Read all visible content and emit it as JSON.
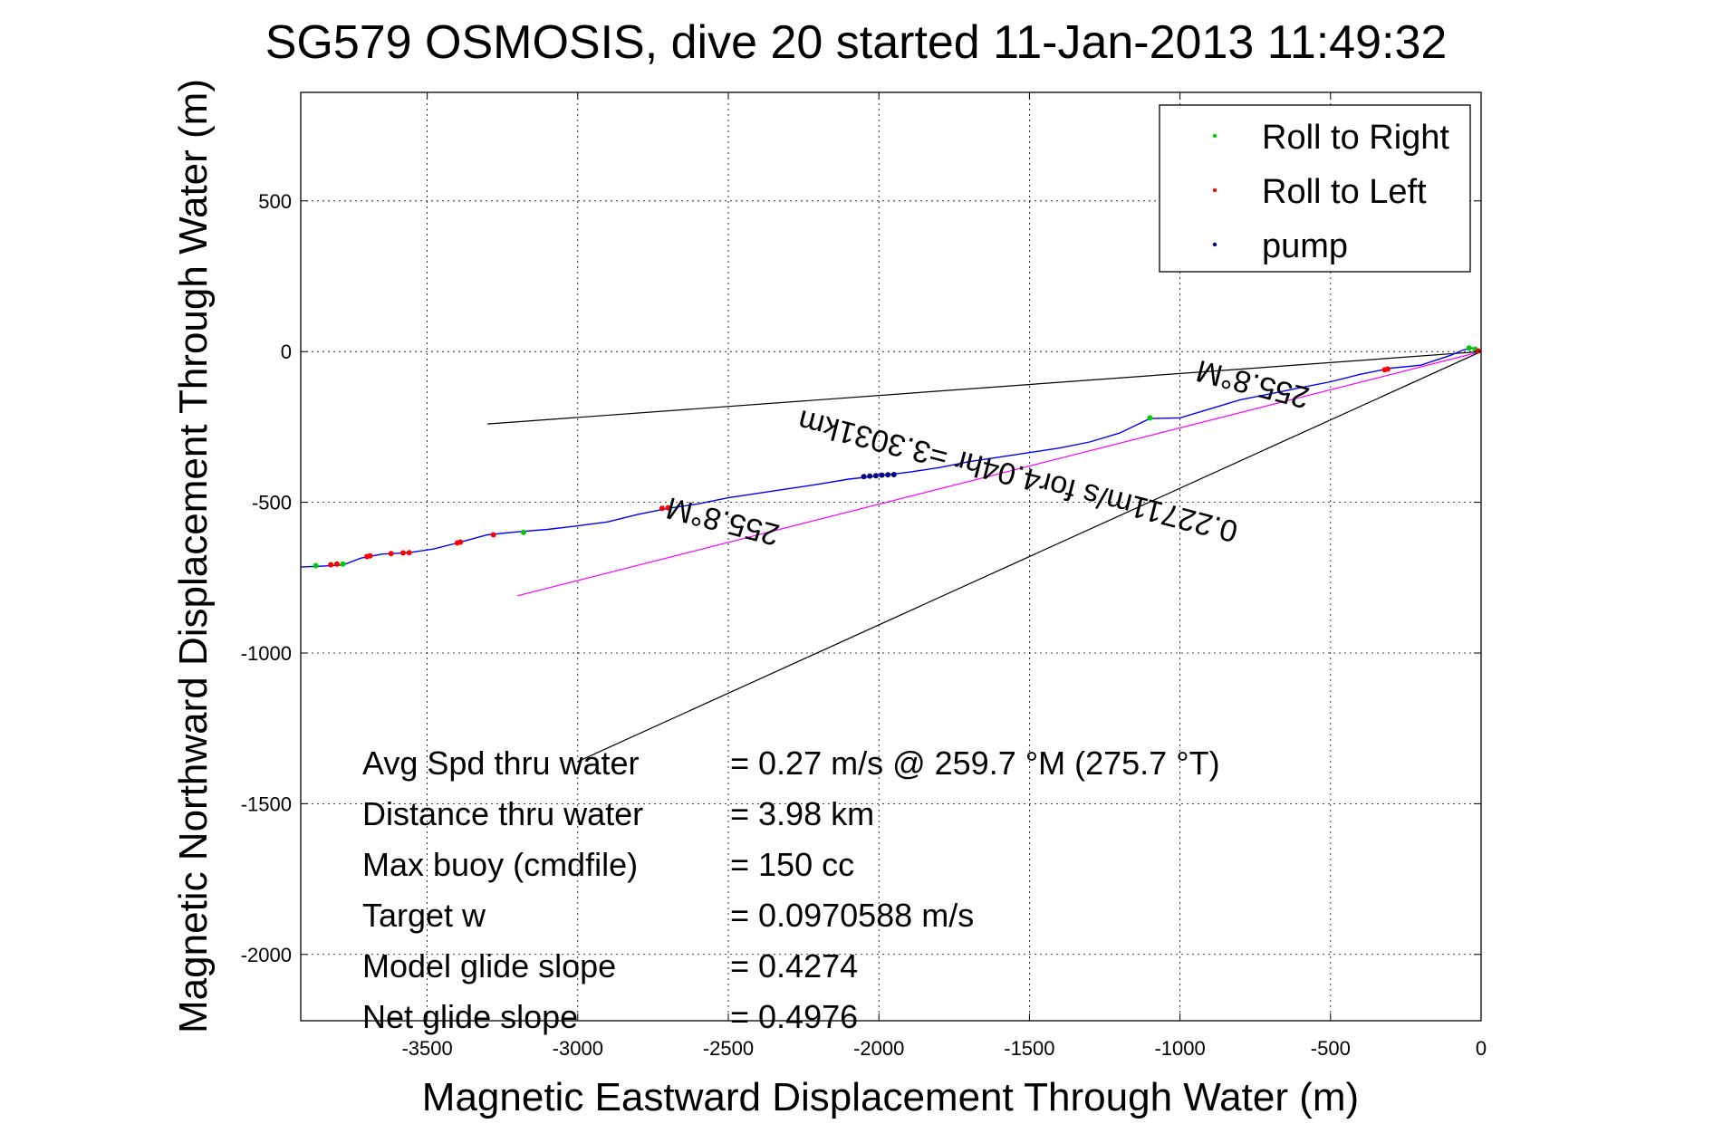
{
  "chart_data": {
    "type": "line",
    "title": "SG579 OSMOSIS, dive 20 started 11-Jan-2013 11:49:32",
    "xlabel": "Magnetic Eastward Displacement Through Water (m)",
    "ylabel": "Magnetic Northward Displacement Through Water (m)",
    "xlim": [
      -3920,
      0
    ],
    "ylim": [
      -2220,
      860
    ],
    "xticks": [
      -3500,
      -3000,
      -2500,
      -2000,
      -1500,
      -1000,
      -500,
      0
    ],
    "yticks": [
      500,
      0,
      -500,
      -1000,
      -1500,
      -2000
    ],
    "grid": true,
    "legend_position": "top-right",
    "series": [
      {
        "name": "Roll to Right",
        "color": "#00cc00",
        "points": [
          [
            -3870,
            -710
          ],
          [
            -3780,
            -705
          ],
          [
            -3180,
            -600
          ],
          [
            -1100,
            -220
          ],
          [
            -40,
            12
          ],
          [
            -20,
            8
          ]
        ]
      },
      {
        "name": "Roll to Left",
        "color": "#ff0000",
        "points": [
          [
            -3820,
            -707
          ],
          [
            -3800,
            -705
          ],
          [
            -3700,
            -680
          ],
          [
            -3690,
            -678
          ],
          [
            -3620,
            -670
          ],
          [
            -3580,
            -668
          ],
          [
            -3560,
            -667
          ],
          [
            -3400,
            -635
          ],
          [
            -3390,
            -632
          ],
          [
            -3280,
            -608
          ],
          [
            -2720,
            -520
          ],
          [
            -2700,
            -518
          ],
          [
            -320,
            -60
          ],
          [
            -310,
            -58
          ],
          [
            -10,
            2
          ]
        ]
      },
      {
        "name": "pump",
        "color": "#000080",
        "points": [
          [
            -2050,
            -415
          ],
          [
            -2030,
            -413
          ],
          [
            -2010,
            -412
          ],
          [
            -1990,
            -410
          ],
          [
            -1970,
            -409
          ],
          [
            -1950,
            -408
          ]
        ]
      }
    ],
    "dive_track": {
      "color": "#0000ff",
      "points": [
        [
          -3920,
          -715
        ],
        [
          -3850,
          -712
        ],
        [
          -3780,
          -708
        ],
        [
          -3720,
          -685
        ],
        [
          -3650,
          -672
        ],
        [
          -3560,
          -667
        ],
        [
          -3480,
          -655
        ],
        [
          -3400,
          -635
        ],
        [
          -3300,
          -608
        ],
        [
          -3200,
          -598
        ],
        [
          -3100,
          -590
        ],
        [
          -3000,
          -578
        ],
        [
          -2900,
          -565
        ],
        [
          -2800,
          -540
        ],
        [
          -2700,
          -520
        ],
        [
          -2600,
          -505
        ],
        [
          -2500,
          -485
        ],
        [
          -2400,
          -470
        ],
        [
          -2300,
          -455
        ],
        [
          -2200,
          -440
        ],
        [
          -2100,
          -423
        ],
        [
          -2000,
          -412
        ],
        [
          -1900,
          -400
        ],
        [
          -1800,
          -385
        ],
        [
          -1700,
          -365
        ],
        [
          -1600,
          -350
        ],
        [
          -1500,
          -335
        ],
        [
          -1400,
          -320
        ],
        [
          -1300,
          -300
        ],
        [
          -1200,
          -270
        ],
        [
          -1100,
          -222
        ],
        [
          -1000,
          -220
        ],
        [
          -900,
          -190
        ],
        [
          -800,
          -160
        ],
        [
          -700,
          -140
        ],
        [
          -600,
          -120
        ],
        [
          -500,
          -100
        ],
        [
          -400,
          -75
        ],
        [
          -300,
          -55
        ],
        [
          -200,
          -45
        ],
        [
          -100,
          -12
        ],
        [
          -60,
          5
        ],
        [
          -30,
          12
        ],
        [
          0,
          2
        ]
      ]
    },
    "reference_lines": [
      {
        "color": "#ff00ff",
        "points": [
          [
            -3200,
            -810
          ],
          [
            0,
            0
          ]
        ]
      },
      {
        "color": "#000000",
        "points": [
          [
            -3300,
            -240
          ],
          [
            0,
            0
          ]
        ]
      },
      {
        "color": "#000000",
        "points": [
          [
            -3000,
            -1360
          ],
          [
            0,
            0
          ]
        ]
      }
    ],
    "annotations": [
      {
        "text": "255.8°M",
        "x": -2510,
        "y": -530,
        "rotate": 194.4
      },
      {
        "text": "0.22711m/s for4.04hr =3.3031km",
        "x": -1530,
        "y": -380,
        "rotate": 194.4
      },
      {
        "text": "255.8°M",
        "x": -750,
        "y": -75,
        "rotate": 194.4
      }
    ],
    "stats": [
      {
        "label": "Avg Spd thru water",
        "value": "=  0.27 m/s @ 259.7 °M (275.7 °T)"
      },
      {
        "label": "Distance thru water",
        "value": "=  3.98 km"
      },
      {
        "label": "Max buoy (cmdfile)",
        "value": "= 150 cc"
      },
      {
        "label": "Target w",
        "value": "= 0.0970588 m/s"
      },
      {
        "label": "Model glide slope",
        "value": "= 0.4274"
      },
      {
        "label": "Net glide slope",
        "value": "= 0.4976"
      }
    ]
  }
}
